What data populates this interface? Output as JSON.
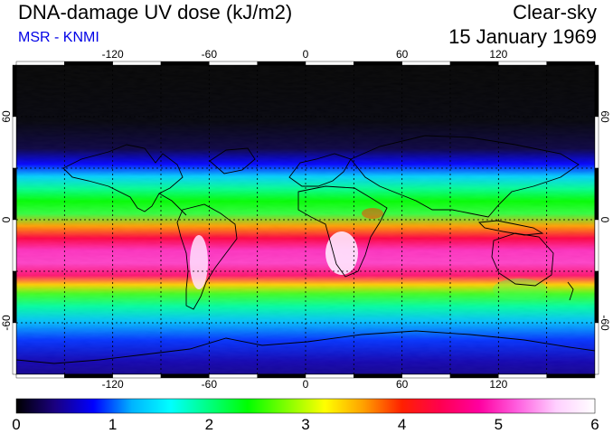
{
  "header": {
    "title": "DNA-damage UV dose (kJ/m2)",
    "subtitle": "MSR - KNMI",
    "condition": "Clear-sky",
    "date": "15 January 1969"
  },
  "map": {
    "lon_ticks": [
      -120,
      -60,
      0,
      60,
      120
    ],
    "lon_tick_labels": [
      "-120",
      "-60",
      "0",
      "60",
      "120"
    ],
    "lat_ticks": [
      60,
      0,
      -60
    ],
    "lat_tick_labels": [
      "60",
      "0",
      "-60"
    ],
    "grid": true,
    "grid_style": "dashed"
  },
  "colorbar": {
    "min": 0,
    "max": 6,
    "tick_labels": [
      "0",
      "1",
      "2",
      "3",
      "4",
      "5",
      "6"
    ],
    "colors": [
      "#000000",
      "#1a0080",
      "#0000ff",
      "#00b4ff",
      "#00ffff",
      "#00ff80",
      "#00ff00",
      "#80ff00",
      "#ffff00",
      "#ffa000",
      "#ff2000",
      "#ff0050",
      "#ff00a0",
      "#ff60e0",
      "#ffd0ff",
      "#ffffff"
    ]
  }
}
